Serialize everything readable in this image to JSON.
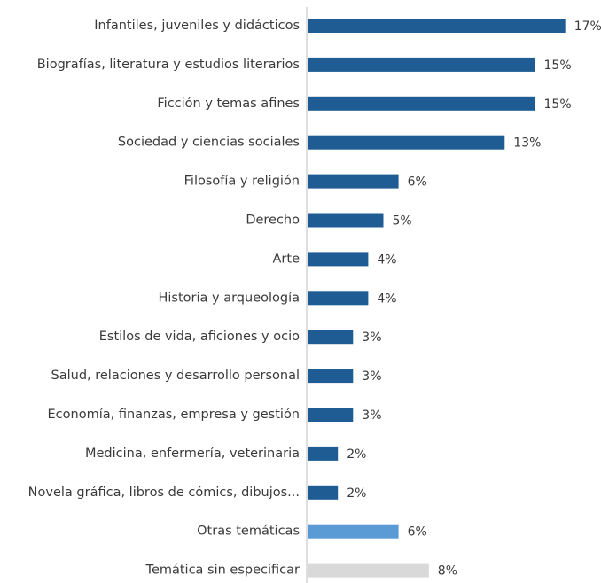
{
  "chart_data": {
    "type": "bar",
    "orientation": "horizontal",
    "title": "",
    "xlabel": "",
    "ylabel": "",
    "grid": false,
    "legend": "none",
    "xlim": [
      0,
      20
    ],
    "value_suffix": "%",
    "categories": [
      "Infantiles, juveniles y didácticos",
      "Biografías, literatura y estudios literarios",
      "Ficción y temas afines",
      "Sociedad y ciencias sociales",
      "Filosofía y religión",
      "Derecho",
      "Arte",
      "Historia y arqueología",
      "Estilos de vida, aficiones y ocio",
      "Salud, relaciones y desarrollo personal",
      "Economía, finanzas, empresa y gestión",
      "Medicina, enfermería, veterinaria",
      "Novela gráfica, libros de cómics, dibujos...",
      "Otras temáticas",
      "Temática sin especificar"
    ],
    "values": [
      17,
      15,
      15,
      13,
      6,
      5,
      4,
      4,
      3,
      3,
      3,
      2,
      2,
      6,
      8
    ],
    "value_labels": [
      "17%",
      "15%",
      "15%",
      "13%",
      "6%",
      "5%",
      "4%",
      "4%",
      "3%",
      "3%",
      "3%",
      "2%",
      "2%",
      "6%",
      "8%"
    ],
    "bar_colors": [
      "#1f5c94",
      "#1f5c94",
      "#1f5c94",
      "#1f5c94",
      "#1f5c94",
      "#1f5c94",
      "#1f5c94",
      "#1f5c94",
      "#1f5c94",
      "#1f5c94",
      "#1f5c94",
      "#1f5c94",
      "#1f5c94",
      "#5b9bd5",
      "#d9d9d9"
    ],
    "axis_color": "#bfbfbf"
  }
}
